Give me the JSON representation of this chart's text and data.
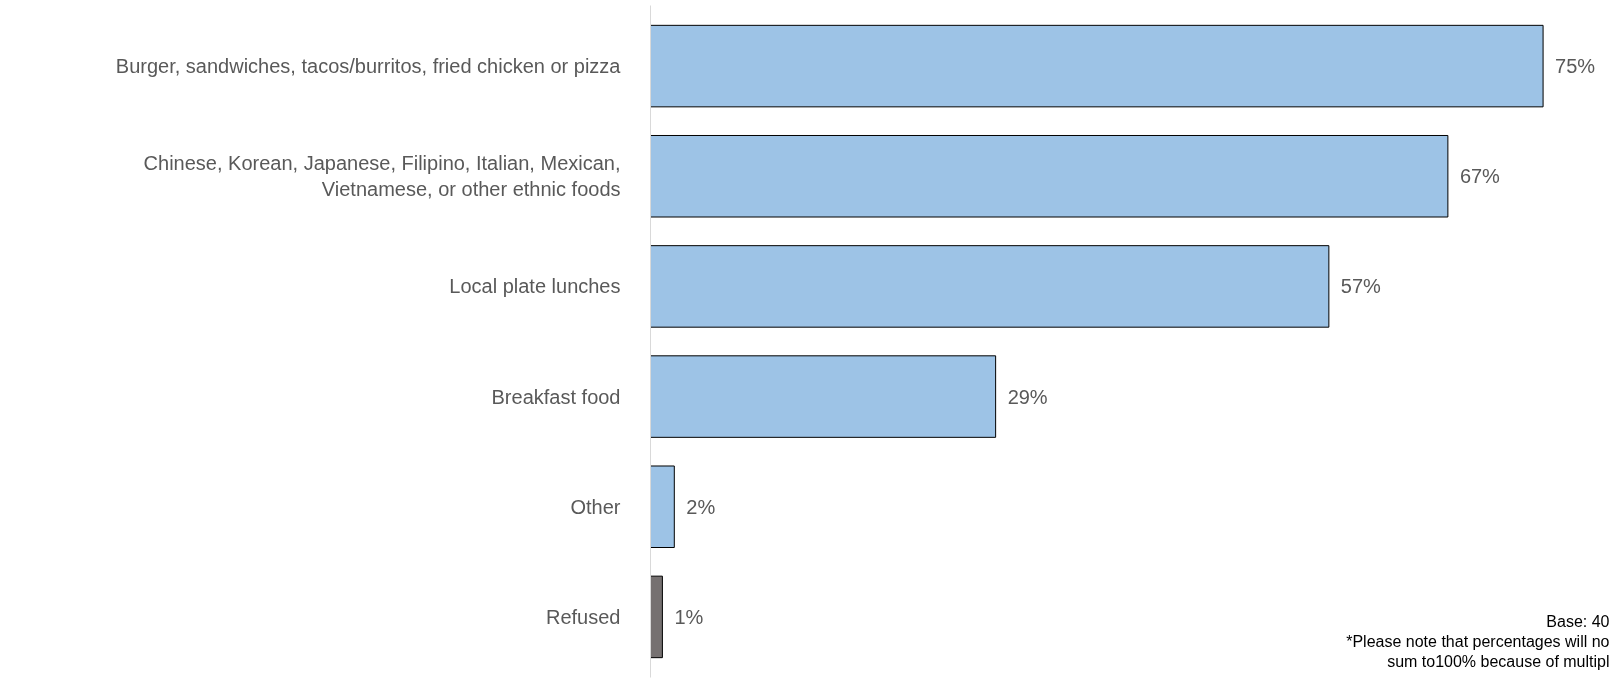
{
  "chart_data": {
    "type": "bar",
    "orientation": "horizontal",
    "categories": [
      "Burger, sandwiches, tacos/burritos, fried chicken or pizza",
      "Chinese, Korean, Japanese, Filipino, Italian, Mexican,\nVietnamese, or other ethnic foods",
      "Local plate lunches",
      "Breakfast food",
      "Other",
      "Refused"
    ],
    "values": [
      75,
      67,
      57,
      29,
      2,
      1
    ],
    "colors": [
      "#9dc3e6",
      "#9dc3e6",
      "#9dc3e6",
      "#9dc3e6",
      "#9dc3e6",
      "#767171"
    ],
    "value_labels": [
      "75%",
      "67%",
      "57%",
      "29%",
      "2%",
      "1%"
    ],
    "relative": false,
    "grid": false,
    "annotations": [
      "Base: 40",
      "*Please note that percentages will no",
      "sum to100% because of multipl"
    ]
  }
}
